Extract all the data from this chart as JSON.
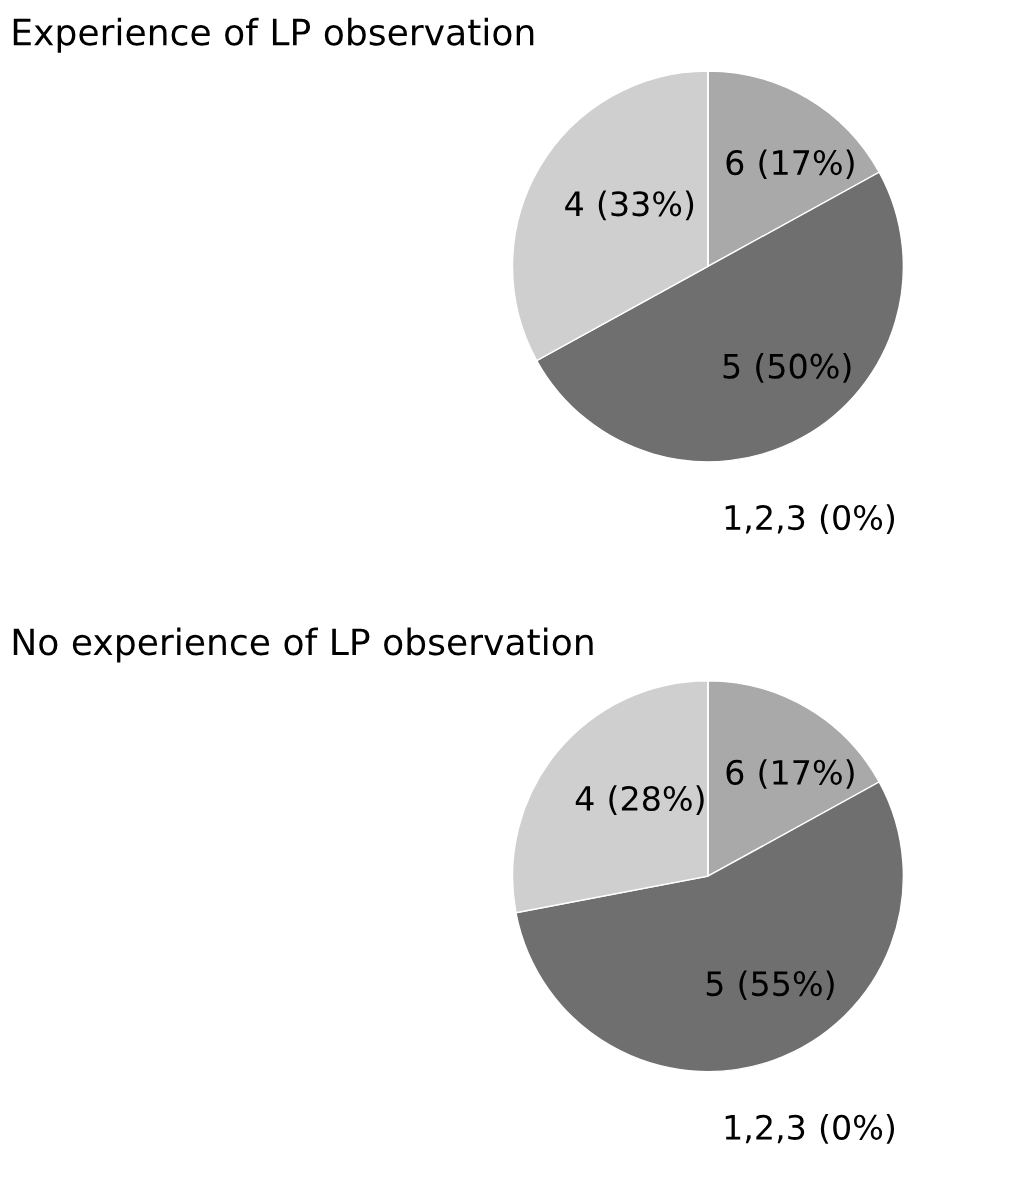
{
  "chart_data": [
    {
      "type": "pie",
      "title": "Experience of LP observation",
      "categories": [
        "6",
        "5",
        "4",
        "1,2,3"
      ],
      "values": [
        17,
        50,
        33,
        0
      ],
      "colors": [
        "#a9a9a9",
        "#6f6f6f",
        "#cfcfcf",
        "#ffffff"
      ],
      "value_labels": [
        "(17%)",
        "(50%)",
        "(33%)",
        "(0%)"
      ]
    },
    {
      "type": "pie",
      "title": "No experience of LP observation",
      "categories": [
        "6",
        "5",
        "4",
        "1,2,3"
      ],
      "values": [
        17,
        55,
        28,
        0
      ],
      "colors": [
        "#a9a9a9",
        "#6f6f6f",
        "#cfcfcf",
        "#ffffff"
      ],
      "value_labels": [
        "(17%)",
        "(55%)",
        "(28%)",
        "(0%)"
      ]
    }
  ]
}
